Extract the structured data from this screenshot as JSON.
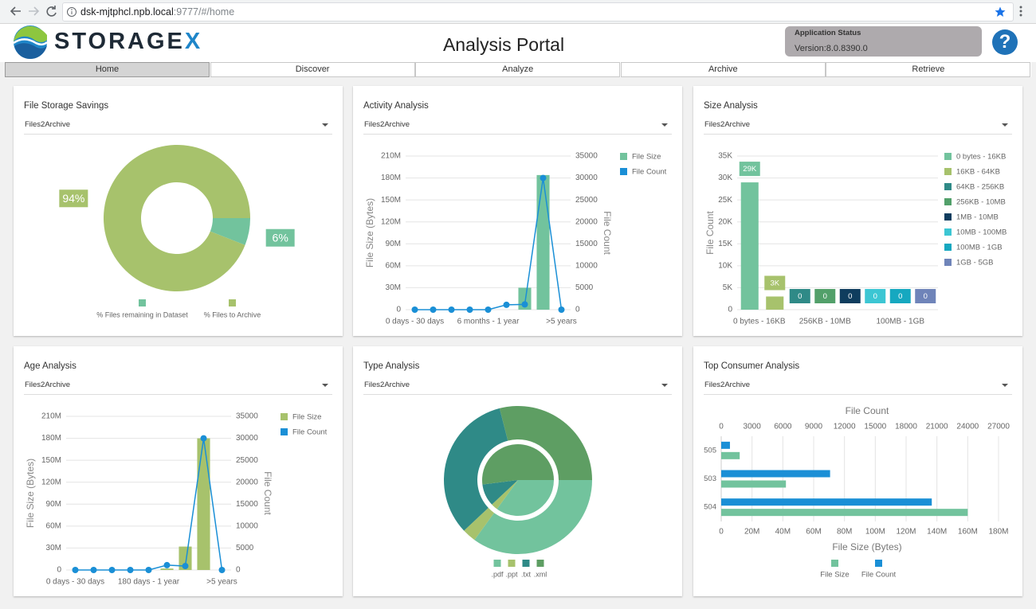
{
  "browser": {
    "url_host": "dsk-mjtphcl.npb.local",
    "url_path": ":9777/#/home"
  },
  "header": {
    "logo_text": "STORAGE",
    "logo_accent": "X",
    "title": "Analysis Portal",
    "status_label": "Application Status",
    "version": "Version:8.0.8390.0",
    "help_icon": "?"
  },
  "nav": [
    "Home",
    "Discover",
    "Analyze",
    "Archive",
    "Retrieve"
  ],
  "chart_data": [
    {
      "type": "donut",
      "title": "File Storage Savings",
      "filter": "Files2Archive",
      "categories": [
        "% Files remaining in Dataset",
        "% Files to Archive"
      ],
      "values": [
        6,
        94
      ],
      "value_labels": [
        "6%",
        "94%"
      ],
      "colors": [
        "#72c39d",
        "#a7c26c"
      ]
    },
    {
      "type": "combo",
      "title": "Activity Analysis",
      "filter": "Files2Archive",
      "categories": [
        "0 days - 30 days",
        null,
        null,
        null,
        "6 months - 1 year",
        null,
        null,
        null,
        ">5 years"
      ],
      "series": [
        {
          "name": "File Size",
          "mark": "bar",
          "color": "#72c39d",
          "values": [
            0,
            0,
            0,
            0,
            0,
            0,
            30000000,
            184000000,
            0
          ]
        },
        {
          "name": "File Count",
          "mark": "line",
          "axis": "y2",
          "color": "#1a8fd6",
          "values": [
            0,
            0,
            0,
            0,
            0,
            1100,
            1200,
            30000,
            0
          ]
        }
      ],
      "ylabel": "File Size (Bytes)",
      "y2label": "File Count",
      "ylim": [
        0,
        210000000
      ],
      "yticks": [
        0,
        {
          "value": 30000000,
          "label": "30M"
        },
        {
          "value": 60000000,
          "label": "60M"
        },
        {
          "value": 90000000,
          "label": "90M"
        },
        {
          "value": 120000000,
          "label": "120M"
        },
        {
          "value": 150000000,
          "label": "150M"
        },
        {
          "value": 180000000,
          "label": "180M"
        },
        {
          "value": 210000000,
          "label": "210M"
        }
      ],
      "y2lim": [
        0,
        35000
      ],
      "y2ticks": [
        0,
        5000,
        10000,
        15000,
        20000,
        25000,
        30000,
        35000
      ],
      "grid": true
    },
    {
      "type": "bar",
      "title": "Size Analysis",
      "filter": "Files2Archive",
      "categories": [
        "0 bytes - 16KB",
        "16KB - 64KB",
        "64KB - 256KB",
        "256KB - 10MB",
        "1MB - 10MB",
        "10MB - 100MB",
        "100MB - 1GB",
        "1GB - 5GB"
      ],
      "values": [
        29000,
        3000,
        0,
        0,
        0,
        0,
        0,
        0
      ],
      "value_labels": [
        "29K",
        "3K",
        "0",
        "0",
        "0",
        "0",
        "0",
        "0"
      ],
      "colors": [
        "#72c39d",
        "#a7c26c",
        "#2f8a87",
        "#52a06a",
        "#0f3d5e",
        "#3cc6d3",
        "#16a8c0",
        "#6f84b9"
      ],
      "ylabel": "File Count",
      "ylim": [
        0,
        35000
      ],
      "yticks": [
        0,
        {
          "value": 5000,
          "label": "5K"
        },
        {
          "value": 10000,
          "label": "10K"
        },
        {
          "value": 15000,
          "label": "15K"
        },
        {
          "value": 20000,
          "label": "20K"
        },
        {
          "value": 25000,
          "label": "25K"
        },
        {
          "value": 30000,
          "label": "30K"
        },
        {
          "value": 35000,
          "label": "35K"
        }
      ],
      "grid": true
    },
    {
      "type": "combo",
      "title": "Age Analysis",
      "filter": "Files2Archive",
      "categories": [
        "0 days - 30 days",
        null,
        null,
        null,
        "180 days - 1 year",
        null,
        null,
        null,
        ">5 years"
      ],
      "series": [
        {
          "name": "File Size",
          "mark": "bar",
          "color": "#a7c26c",
          "values": [
            0,
            0,
            0,
            0,
            0,
            2000000,
            32000000,
            180000000,
            0
          ]
        },
        {
          "name": "File Count",
          "mark": "line",
          "axis": "y2",
          "color": "#1a8fd6",
          "values": [
            0,
            0,
            0,
            0,
            0,
            1100,
            900,
            30000,
            0
          ]
        }
      ],
      "ylabel": "File Size (Bytes)",
      "y2label": "File Count",
      "ylim": [
        0,
        210000000
      ],
      "yticks": [
        0,
        {
          "value": 30000000,
          "label": "30M"
        },
        {
          "value": 60000000,
          "label": "60M"
        },
        {
          "value": 90000000,
          "label": "90M"
        },
        {
          "value": 120000000,
          "label": "120M"
        },
        {
          "value": 150000000,
          "label": "150M"
        },
        {
          "value": 180000000,
          "label": "180M"
        },
        {
          "value": 210000000,
          "label": "210M"
        }
      ],
      "y2lim": [
        0,
        35000
      ],
      "y2ticks": [
        0,
        5000,
        10000,
        15000,
        20000,
        25000,
        30000,
        35000
      ],
      "grid": true
    },
    {
      "type": "nested-donut",
      "title": "Type Analysis",
      "filter": "Files2Archive",
      "categories": [
        ".pdf",
        ".ppt",
        ".txt",
        ".xml"
      ],
      "colors": [
        "#72c39d",
        "#a7c26c",
        "#2f8a87",
        "#5e9e63"
      ],
      "series": [
        {
          "values": [
            35,
            3,
            10,
            52
          ]
        },
        {
          "values": [
            35,
            3,
            33,
            29
          ]
        }
      ]
    },
    {
      "type": "hbar",
      "title": "Top Consumer Analysis",
      "filter": "Files2Archive",
      "categories": [
        "505",
        "503",
        "504"
      ],
      "series": [
        {
          "name": "File Size",
          "color": "#72c39d",
          "values": [
            12000000,
            42000000,
            160000000
          ]
        },
        {
          "name": "File Count",
          "color": "#1a8fd6",
          "axis": "x2",
          "values": [
            850,
            10600,
            20500
          ]
        }
      ],
      "xlabel": "File Size (Bytes)",
      "x2label": "File Count",
      "xlim": [
        0,
        180000000
      ],
      "xticks": [
        0,
        {
          "value": 20000000,
          "label": "20M"
        },
        {
          "value": 40000000,
          "label": "40M"
        },
        {
          "value": 60000000,
          "label": "60M"
        },
        {
          "value": 80000000,
          "label": "80M"
        },
        {
          "value": 100000000,
          "label": "100M"
        },
        {
          "value": 120000000,
          "label": "120M"
        },
        {
          "value": 140000000,
          "label": "140M"
        },
        {
          "value": 160000000,
          "label": "160M"
        },
        {
          "value": 180000000,
          "label": "180M"
        }
      ],
      "x2lim": [
        0,
        27000
      ],
      "x2ticks": [
        0,
        3000,
        6000,
        9000,
        12000,
        15000,
        18000,
        21000,
        24000,
        27000
      ],
      "grid": true
    }
  ]
}
